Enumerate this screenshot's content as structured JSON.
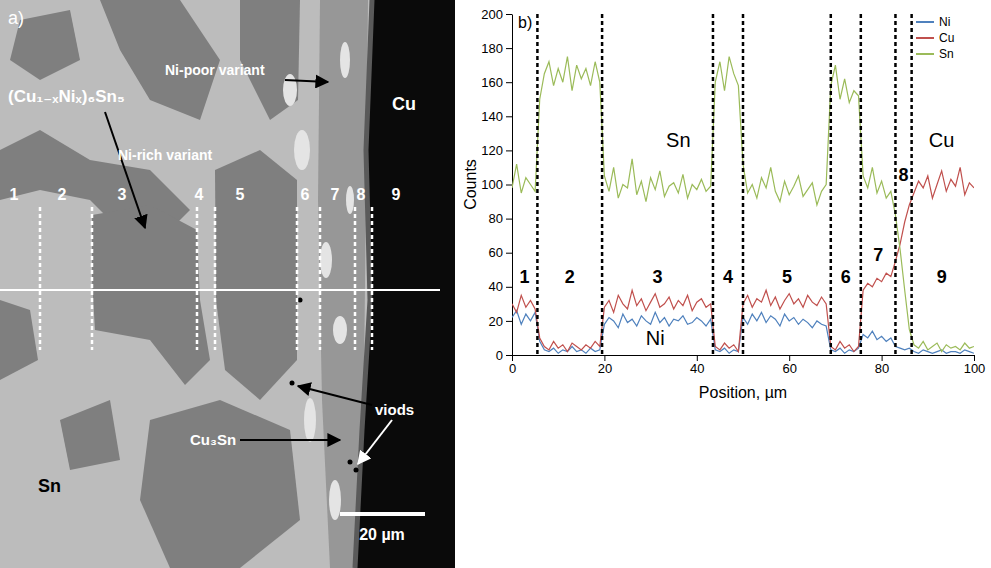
{
  "micrograph": {
    "panel_label": "a)",
    "labels": {
      "ni_poor": "Ni-poor variant",
      "imc": "(Cu₁₋ₓNiₓ)₆Sn₅",
      "ni_rich": "Ni-rich variant",
      "cu": "Cu",
      "sn": "Sn",
      "voids": "viods",
      "cu3sn": "Cu₃Sn"
    },
    "region_labels": [
      "1",
      "2",
      "3",
      "4",
      "5",
      "6",
      "7",
      "8",
      "9"
    ],
    "scale_bar": "20 µm"
  },
  "chart_data": {
    "type": "line",
    "panel_label": "b)",
    "x_label": "Position, µm",
    "y_label": "Counts",
    "x": [
      0,
      1,
      2,
      3,
      4,
      5,
      6,
      7,
      8,
      9,
      10,
      11,
      12,
      13,
      14,
      15,
      16,
      17,
      18,
      19,
      20,
      21,
      22,
      23,
      24,
      25,
      26,
      27,
      28,
      29,
      30,
      31,
      32,
      33,
      34,
      35,
      36,
      37,
      38,
      39,
      40,
      41,
      42,
      43,
      44,
      45,
      46,
      47,
      48,
      49,
      50,
      51,
      52,
      53,
      54,
      55,
      56,
      57,
      58,
      59,
      60,
      61,
      62,
      63,
      64,
      65,
      66,
      67,
      68,
      69,
      70,
      71,
      72,
      73,
      74,
      75,
      76,
      77,
      78,
      79,
      80,
      81,
      82,
      83,
      84,
      85,
      86,
      87,
      88,
      89,
      90,
      91,
      92,
      93,
      94,
      95,
      96,
      97,
      98,
      99,
      100
    ],
    "series": [
      {
        "name": "Ni",
        "color": "#4f81bd",
        "values": [
          22,
          26,
          18,
          24,
          20,
          25,
          8,
          3,
          2,
          4,
          1,
          3,
          2,
          5,
          2,
          3,
          1,
          4,
          2,
          3,
          18,
          22,
          20,
          16,
          24,
          19,
          21,
          17,
          23,
          20,
          18,
          25,
          19,
          22,
          17,
          21,
          20,
          23,
          18,
          19,
          22,
          20,
          17,
          21,
          3,
          2,
          4,
          1,
          3,
          2,
          22,
          18,
          24,
          20,
          25,
          19,
          23,
          21,
          17,
          24,
          20,
          22,
          18,
          21,
          19,
          16,
          20,
          18,
          17,
          3,
          2,
          4,
          1,
          3,
          2,
          4,
          12,
          10,
          14,
          9,
          11,
          8,
          10,
          5,
          4,
          3,
          4,
          2,
          1,
          3,
          2,
          1,
          2,
          3,
          1,
          2,
          2,
          1,
          3,
          2,
          1
        ]
      },
      {
        "name": "Cu",
        "color": "#c0504d",
        "values": [
          30,
          25,
          35,
          28,
          32,
          27,
          10,
          5,
          3,
          8,
          4,
          6,
          2,
          7,
          5,
          3,
          6,
          4,
          8,
          5,
          28,
          32,
          25,
          35,
          30,
          27,
          38,
          29,
          33,
          26,
          31,
          36,
          28,
          30,
          34,
          27,
          32,
          29,
          35,
          26,
          31,
          33,
          28,
          30,
          5,
          3,
          7,
          4,
          6,
          2,
          30,
          35,
          28,
          33,
          31,
          38,
          29,
          34,
          27,
          32,
          36,
          30,
          33,
          28,
          35,
          31,
          29,
          34,
          30,
          5,
          3,
          8,
          4,
          6,
          2,
          5,
          38,
          42,
          40,
          45,
          43,
          48,
          46,
          55,
          65,
          78,
          88,
          95,
          102,
          98,
          105,
          92,
          100,
          108,
          96,
          103,
          99,
          110,
          94,
          101,
          98
        ]
      },
      {
        "name": "Sn",
        "color": "#9bbb59",
        "values": [
          98,
          112,
          95,
          104,
          100,
          96,
          150,
          165,
          172,
          158,
          168,
          160,
          175,
          155,
          170,
          162,
          168,
          158,
          172,
          160,
          105,
          96,
          110,
          92,
          100,
          98,
          115,
          94,
          102,
          90,
          104,
          97,
          108,
          93,
          99,
          101,
          95,
          106,
          92,
          100,
          97,
          103,
          96,
          99,
          160,
          172,
          155,
          175,
          165,
          158,
          112,
          95,
          100,
          92,
          104,
          98,
          110,
          96,
          90,
          102,
          94,
          99,
          105,
          93,
          97,
          101,
          88,
          96,
          100,
          158,
          170,
          150,
          162,
          148,
          155,
          152,
          105,
          98,
          110,
          95,
          102,
          92,
          96,
          82,
          62,
          38,
          15,
          6,
          4,
          8,
          3,
          5,
          7,
          2,
          6,
          4,
          5,
          3,
          7,
          4,
          5
        ]
      }
    ],
    "xlim": [
      0,
      100
    ],
    "xticks": [
      0,
      20,
      40,
      60,
      80,
      100
    ],
    "ylim": [
      0,
      200
    ],
    "yticks": [
      0,
      20,
      40,
      60,
      80,
      100,
      120,
      140,
      160,
      180,
      200
    ],
    "grid": false,
    "legend": "upper right",
    "boundaries": [
      5.5,
      19.5,
      43.5,
      50,
      69,
      75.5,
      83,
      86.5
    ],
    "region_labels": [
      {
        "text": "1",
        "x": 2.7,
        "y": 42
      },
      {
        "text": "2",
        "x": 12.5,
        "y": 42
      },
      {
        "text": "3",
        "x": 31.5,
        "y": 42
      },
      {
        "text": "4",
        "x": 46.75,
        "y": 42
      },
      {
        "text": "5",
        "x": 59.5,
        "y": 42
      },
      {
        "text": "6",
        "x": 72.25,
        "y": 42
      },
      {
        "text": "7",
        "x": 79.25,
        "y": 55
      },
      {
        "text": "8",
        "x": 84.75,
        "y": 102
      },
      {
        "text": "9",
        "x": 93,
        "y": 42
      }
    ],
    "annotations": [
      {
        "text": "Sn",
        "x": 36,
        "y": 122
      },
      {
        "text": "Cu",
        "x": 93,
        "y": 122
      },
      {
        "text": "Ni",
        "x": 31,
        "y": 6
      }
    ]
  }
}
